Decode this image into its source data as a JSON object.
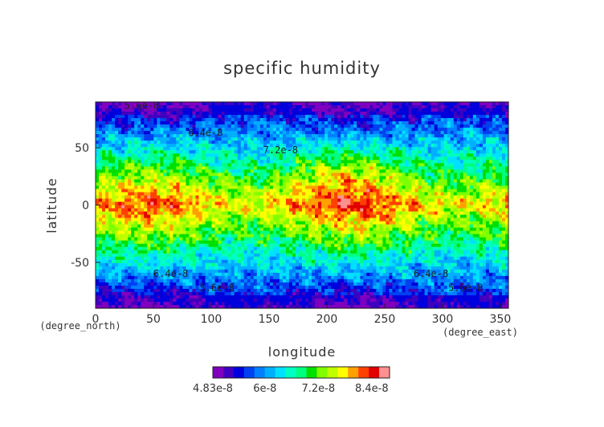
{
  "chart_data": {
    "type": "heatmap",
    "title": "specific humidity",
    "xlabel": "longitude",
    "ylabel": "latitude",
    "x_units": "(degree_east)",
    "y_units": "(degree_north)",
    "xlim": [
      0,
      357
    ],
    "ylim": [
      -90,
      90
    ],
    "xticks": [
      0,
      50,
      100,
      150,
      200,
      250,
      300,
      350
    ],
    "yticks": [
      50,
      0,
      -50
    ],
    "contour_labels": [
      {
        "text": "5.6e-8",
        "x": 40,
        "y": 87
      },
      {
        "text": "6.4e-8",
        "x": 95,
        "y": 63
      },
      {
        "text": "7.2e-8",
        "x": 160,
        "y": 48
      },
      {
        "text": "6.4e-8",
        "x": 65,
        "y": -60
      },
      {
        "text": "5.6e-8",
        "x": 105,
        "y": -72
      },
      {
        "text": "6.4e-8",
        "x": 290,
        "y": -60
      },
      {
        "text": "5.6e-8",
        "x": 320,
        "y": -72
      }
    ],
    "colorbar": {
      "min": 4.83e-08,
      "max": 8.8e-08,
      "tick_labels": [
        "4.83e-8",
        "6e-8",
        "7.2e-8",
        "8.4e-8"
      ],
      "colors": [
        "#7f00bf",
        "#4000bf",
        "#0000dd",
        "#0040f0",
        "#0080ff",
        "#00b0ff",
        "#00e0ff",
        "#00ffc0",
        "#00ff80",
        "#00e000",
        "#80ff00",
        "#c0ff00",
        "#ffff00",
        "#ffa000",
        "#ff4000",
        "#e00000",
        "#ff9090"
      ]
    },
    "grid": false
  }
}
